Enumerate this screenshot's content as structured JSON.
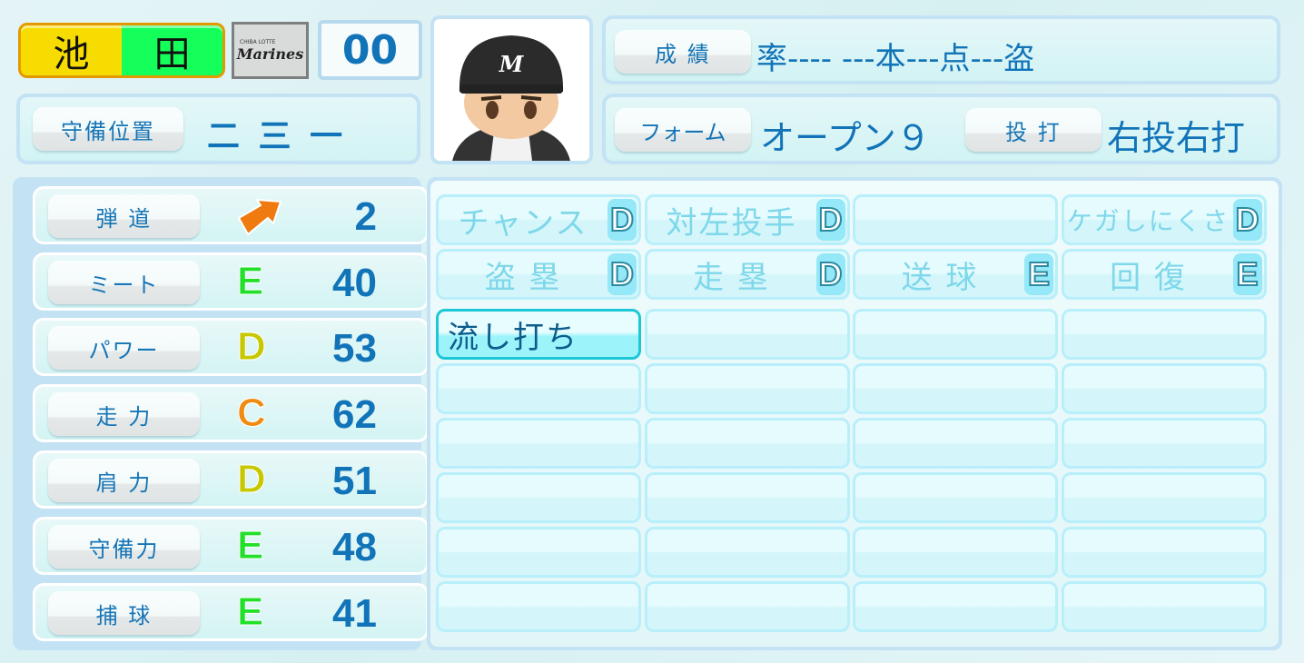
{
  "player": {
    "name_family": "池",
    "name_given": "田",
    "number": "00",
    "team_logo_small": "CHIBA LOTTE",
    "team_logo": "Marines"
  },
  "position": {
    "label": "守備位置",
    "value": "二 三 一"
  },
  "record": {
    "label": "成 績",
    "value": "率---- ---本---点---盗"
  },
  "form": {
    "label": "フォーム",
    "value": "オープン９",
    "throw_bat_label": "投 打",
    "throw_bat_value": "右投右打"
  },
  "grade_colors": {
    "E": "#22e02a",
    "D": "#c8c800",
    "C": "#f08a10",
    "arrow": "#ee7a10"
  },
  "stats": [
    {
      "label": "弾 道",
      "grade": "",
      "icon": "trajectory-arrow-icon",
      "value": "2"
    },
    {
      "label": "ミート",
      "grade": "E",
      "value": "40"
    },
    {
      "label": "パワー",
      "grade": "D",
      "value": "53"
    },
    {
      "label": "走 力",
      "grade": "C",
      "value": "62"
    },
    {
      "label": "肩 力",
      "grade": "D",
      "value": "51"
    },
    {
      "label": "守備力",
      "grade": "E",
      "value": "48"
    },
    {
      "label": "捕 球",
      "grade": "E",
      "value": "41"
    }
  ],
  "abilities": [
    {
      "label": "チャンス",
      "grade": "D"
    },
    {
      "label": "対左投手",
      "grade": "D"
    },
    {
      "label": "",
      "grade": ""
    },
    {
      "label": "ケガしにくさ",
      "grade": "D"
    },
    {
      "label": "盗 塁",
      "grade": "D"
    },
    {
      "label": "走 塁",
      "grade": "D"
    },
    {
      "label": "送 球",
      "grade": "E"
    },
    {
      "label": "回 復",
      "grade": "E"
    },
    {
      "label": "流し打ち",
      "grade": "",
      "highlight": true
    },
    {
      "label": ""
    },
    {
      "label": ""
    },
    {
      "label": ""
    },
    {
      "label": ""
    },
    {
      "label": ""
    },
    {
      "label": ""
    },
    {
      "label": ""
    },
    {
      "label": ""
    },
    {
      "label": ""
    },
    {
      "label": ""
    },
    {
      "label": ""
    },
    {
      "label": ""
    },
    {
      "label": ""
    },
    {
      "label": ""
    },
    {
      "label": ""
    },
    {
      "label": ""
    },
    {
      "label": ""
    },
    {
      "label": ""
    },
    {
      "label": ""
    },
    {
      "label": ""
    },
    {
      "label": ""
    },
    {
      "label": ""
    },
    {
      "label": ""
    }
  ]
}
